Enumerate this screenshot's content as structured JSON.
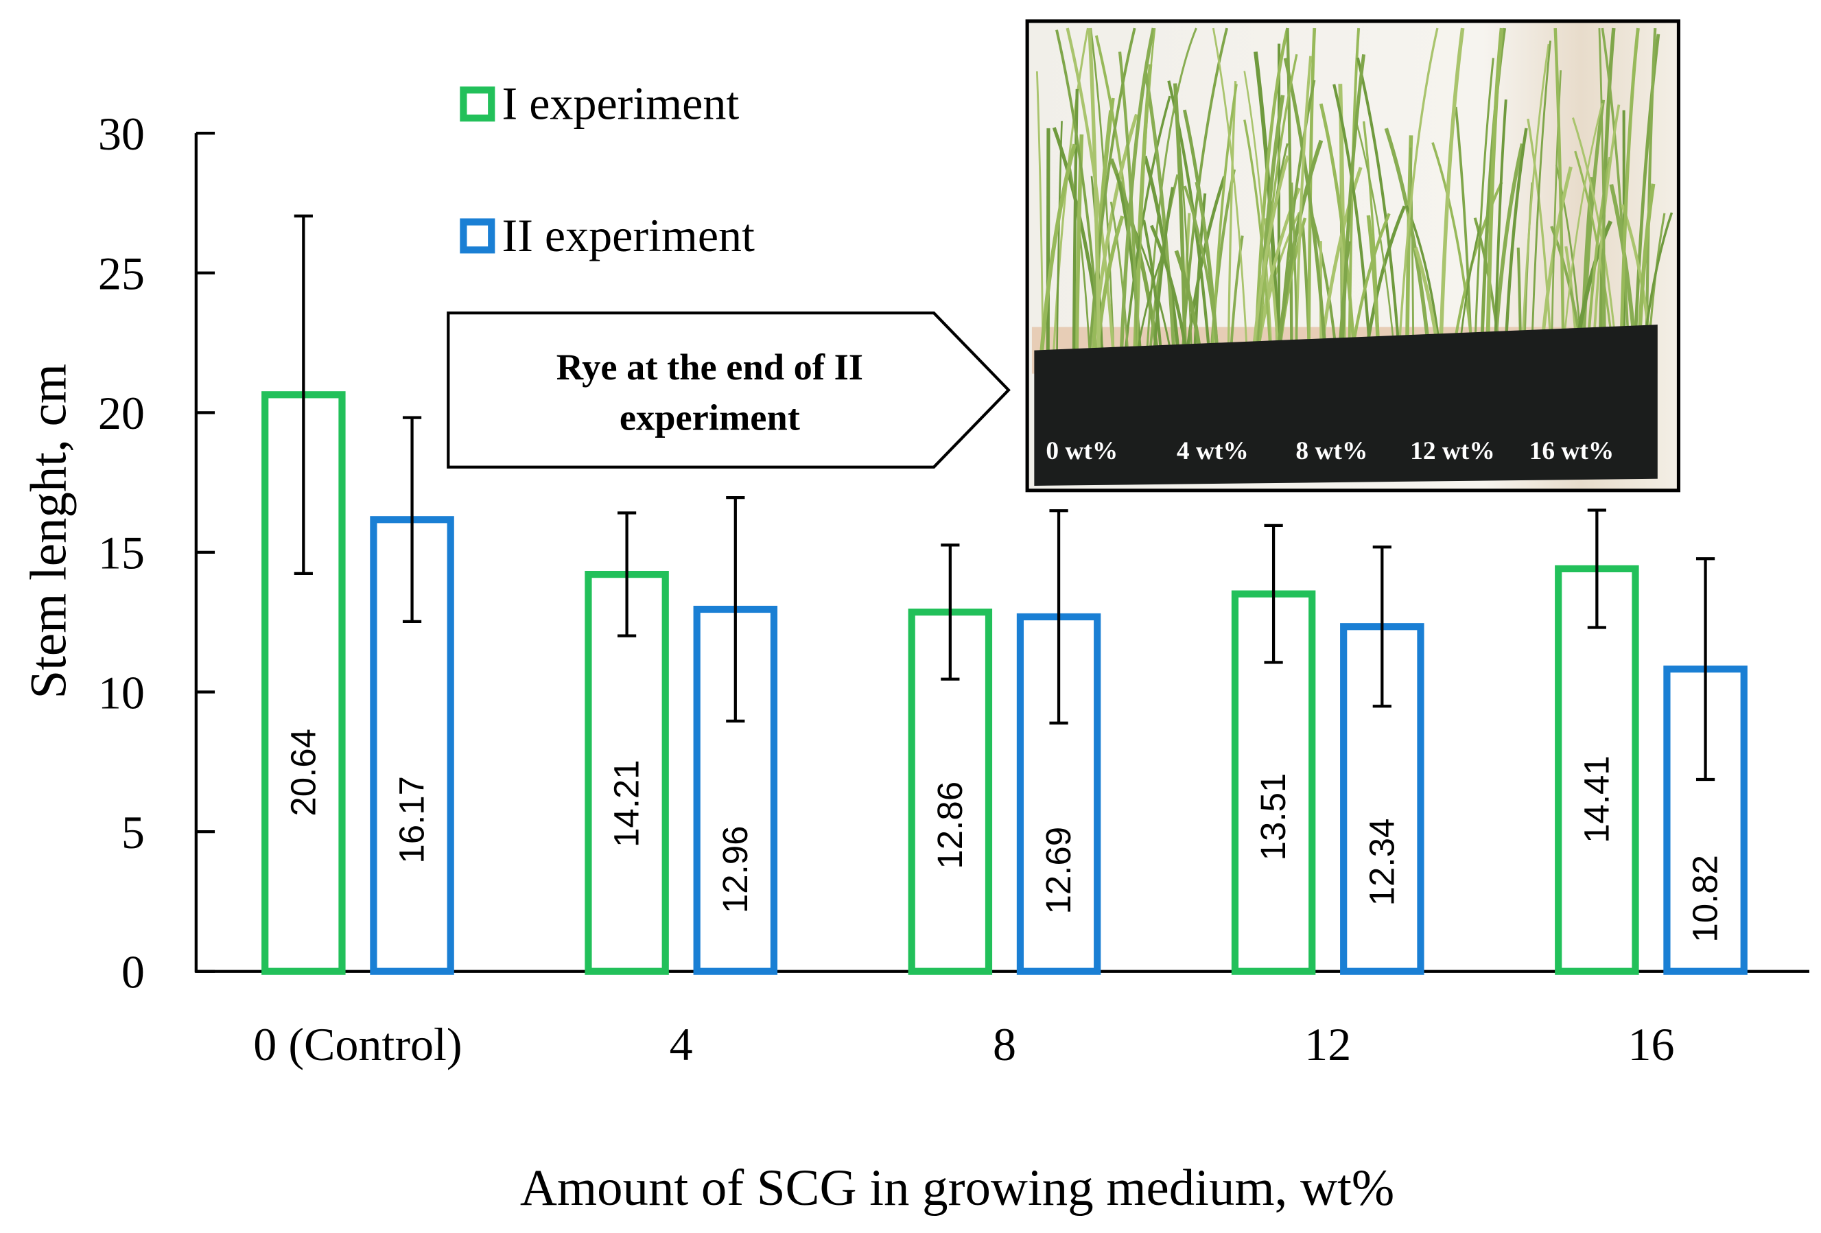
{
  "chart_data": {
    "type": "bar",
    "title": "",
    "xlabel": "Amount of SCG in growing medium, wt%",
    "ylabel": "Stem lenght, cm",
    "ylim": [
      0,
      30
    ],
    "yticks": [
      "0",
      "5",
      "10",
      "15",
      "20",
      "25",
      "30"
    ],
    "categories": [
      "0 (Control)",
      "4",
      "8",
      "12",
      "16"
    ],
    "series": [
      {
        "name": "I experiment",
        "color": "#22c05a",
        "values": [
          20.64,
          14.21,
          12.86,
          13.51,
          14.41
        ],
        "labels": [
          "20.64",
          "14.21",
          "12.86",
          "13.51",
          "14.41"
        ],
        "errors": [
          6.4,
          2.2,
          2.4,
          2.45,
          2.1
        ]
      },
      {
        "name": "II experiment",
        "color": "#1a7fd4",
        "values": [
          16.17,
          12.96,
          12.69,
          12.34,
          10.82
        ],
        "labels": [
          "16.17",
          "12.96",
          "12.69",
          "12.34",
          "10.82"
        ],
        "errors": [
          3.65,
          4.0,
          3.8,
          2.85,
          3.95
        ]
      }
    ],
    "legend_position": "top-left",
    "grid": false
  },
  "callout": {
    "line1": "Rye at the end of II",
    "line2": "experiment"
  },
  "photo": {
    "labels": [
      "0 wt%",
      "4 wt%",
      "8 wt%",
      "12 wt%",
      "16 wt%"
    ]
  }
}
